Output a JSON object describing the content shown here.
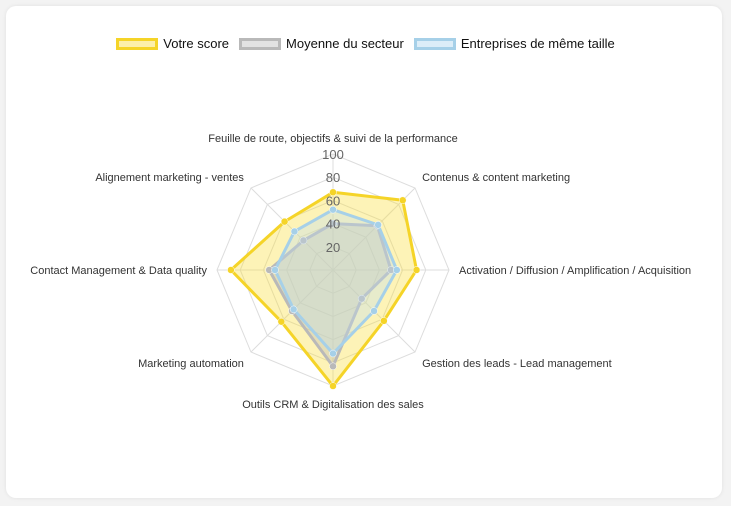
{
  "chart_data": {
    "type": "radar",
    "axes": [
      "Feuille de route, objectifs & suivi de la performance",
      "Contenus & content marketing",
      "Activation / Diffusion / Amplification / Acquisition",
      "Gestion des leads - Lead management",
      "Outils CRM & Digitalisation des sales",
      "Marketing automation",
      "Contact Management & Data quality",
      "Alignement marketing - ventes"
    ],
    "rlim": [
      0,
      100
    ],
    "ticks": [
      "20",
      "40",
      "60",
      "80",
      "100"
    ],
    "series": [
      {
        "name": "Votre score",
        "values": [
          67,
          85,
          72,
          62,
          100,
          63,
          88,
          59
        ],
        "stroke": "#f5d428",
        "fill": "rgba(250,220,50,0.35)"
      },
      {
        "name": "Moyenne du secteur",
        "values": [
          40,
          54,
          50,
          35,
          83,
          50,
          55,
          36
        ],
        "stroke": "#b9b9b9",
        "fill": "rgba(180,180,180,0.35)"
      },
      {
        "name": "Entreprises de même taille",
        "values": [
          52,
          55,
          55,
          50,
          72,
          48,
          50,
          47
        ],
        "stroke": "#a6d0e8",
        "fill": "rgba(190,220,240,0.35)"
      }
    ]
  }
}
